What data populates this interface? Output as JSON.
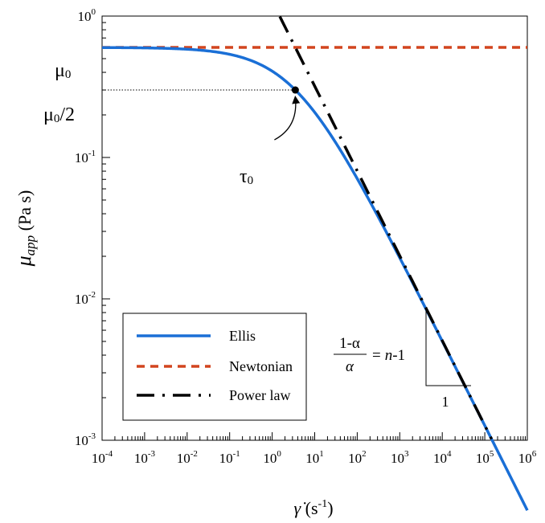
{
  "chart_data": {
    "type": "line",
    "x_scale": "log",
    "y_scale": "log",
    "xlim": [
      0.0001,
      1000000
    ],
    "ylim": [
      0.001,
      1
    ],
    "xlabel": {
      "main": "γ̇",
      "unit_open": " (s",
      "unit_exp": "-1",
      "unit_close": ")"
    },
    "ylabel": {
      "main": "μ",
      "sub": "app",
      "unit": " (Pa s)"
    },
    "x_ticks": [
      {
        "base": "10",
        "exp": "-4"
      },
      {
        "base": "10",
        "exp": "-3"
      },
      {
        "base": "10",
        "exp": "-2"
      },
      {
        "base": "10",
        "exp": "-1"
      },
      {
        "base": "10",
        "exp": "0"
      },
      {
        "base": "10",
        "exp": "1"
      },
      {
        "base": "10",
        "exp": "2"
      },
      {
        "base": "10",
        "exp": "3"
      },
      {
        "base": "10",
        "exp": "4"
      },
      {
        "base": "10",
        "exp": "5"
      },
      {
        "base": "10",
        "exp": "6"
      }
    ],
    "y_ticks": [
      {
        "base": "10",
        "exp": "0"
      },
      {
        "base": "10",
        "exp": "-1"
      },
      {
        "base": "10",
        "exp": "-2"
      },
      {
        "base": "10",
        "exp": "-3"
      }
    ],
    "mu0": 0.6,
    "alpha": 2.5,
    "tau_point": {
      "x": 3.5,
      "y": 0.3
    },
    "series": [
      {
        "name": "Ellis",
        "style": "solid",
        "color": "#1a6fd6"
      },
      {
        "name": "Newtonian",
        "style": "dashed",
        "color": "#d2451f"
      },
      {
        "name": "Power law",
        "style": "dash-dot",
        "color": "#000000"
      }
    ],
    "annotations": {
      "mu0_label": {
        "base": "μ",
        "sub": "0"
      },
      "mu0_half_label": {
        "base": "μ",
        "sub": "0",
        "rest": "/2"
      },
      "tau0_label": {
        "base": "τ",
        "sub": "0"
      },
      "equation": {
        "num": "1-α",
        "den": "α",
        "eq": "=",
        "rhs_n": "n",
        "rhs_rest": "-1"
      },
      "slope_run_label": "1"
    },
    "legend": {
      "position": "bottom-left"
    },
    "grid": false
  }
}
